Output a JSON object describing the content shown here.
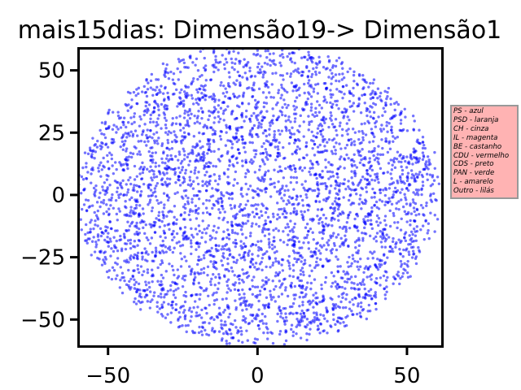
{
  "chart_data": {
    "type": "scatter",
    "title": "mais15dias: Dimensão19-> Dimensão1",
    "xlabel": "",
    "ylabel": "",
    "xlim": [
      -60,
      62
    ],
    "ylim": [
      -61,
      59
    ],
    "xticks": [
      -50,
      0,
      50
    ],
    "xtick_labels": [
      "−50",
      "0",
      "50"
    ],
    "yticks": [
      -50,
      -25,
      0,
      25,
      50
    ],
    "ytick_labels": [
      "−50",
      "−25",
      "0",
      "25",
      "50"
    ],
    "grid": false,
    "point_color": "#0000ff",
    "point_alpha": 0.55,
    "legend_placement": "right, outside plot",
    "legend_text": [
      "PS - azul",
      "PSD - laranja",
      "CH - cinza",
      "IL - magenta",
      "BE - castanho",
      "CDU - vermelho",
      "CDS - preto",
      "PAN - verde",
      "L - amarelo",
      "Outro - lilás"
    ],
    "legend_background": "#ffb3b3",
    "series": [
      {
        "distribution": "approximately uniform within a circular region",
        "center": [
          0,
          0
        ],
        "radius": 60,
        "approx_count": 4000,
        "points": [
          [
            -48,
            28
          ],
          [
            -45,
            10
          ],
          [
            -40,
            -38
          ],
          [
            -35,
            40
          ],
          [
            -30,
            -12
          ],
          [
            -25,
            22
          ],
          [
            -20,
            -45
          ],
          [
            -15,
            52
          ],
          [
            -10,
            5
          ],
          [
            -5,
            -30
          ],
          [
            0,
            58
          ],
          [
            0,
            -58
          ],
          [
            5,
            30
          ],
          [
            10,
            -20
          ],
          [
            15,
            48
          ],
          [
            20,
            -50
          ],
          [
            25,
            12
          ],
          [
            30,
            -35
          ],
          [
            35,
            40
          ],
          [
            40,
            -5
          ],
          [
            45,
            25
          ],
          [
            50,
            -28
          ],
          [
            55,
            8
          ],
          [
            58,
            -2
          ],
          [
            -58,
            2
          ],
          [
            -52,
            -15
          ],
          [
            12,
            -55
          ],
          [
            -22,
            45
          ],
          [
            32,
            -48
          ],
          [
            48,
            30
          ]
        ]
      }
    ]
  }
}
